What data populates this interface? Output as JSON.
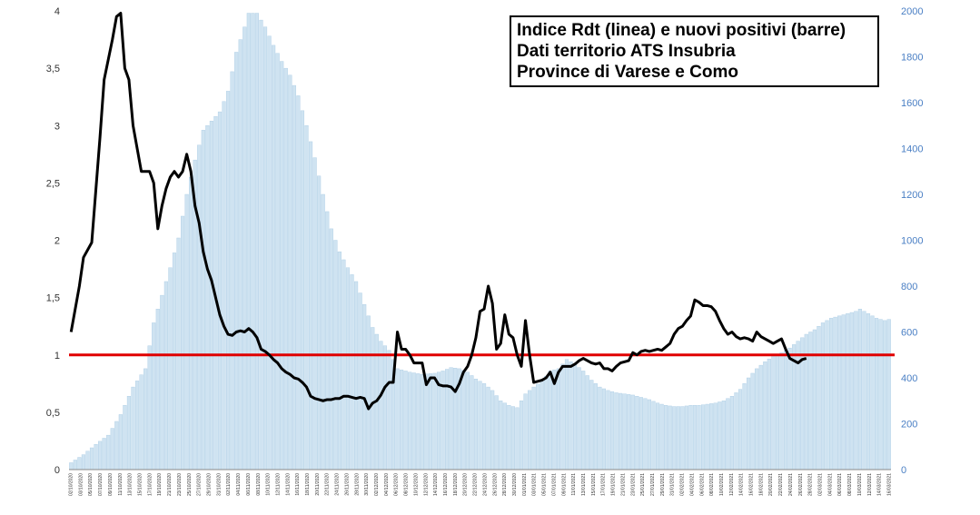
{
  "chart_data": {
    "type": "bar+line",
    "title_lines": [
      "Indice Rdt (linea) e nuovi positivi (barre)",
      "Dati territorio ATS Insubria",
      "Province di Varese e Como"
    ],
    "left_axis": {
      "min": 0,
      "max": 4,
      "ticks": [
        "0",
        "0,5",
        "1",
        "1,5",
        "2",
        "2,5",
        "3",
        "3,5",
        "4"
      ]
    },
    "right_axis": {
      "min": 0,
      "max": 2000,
      "ticks": [
        "0",
        "200",
        "400",
        "600",
        "800",
        "1000",
        "1200",
        "1400",
        "1600",
        "1800",
        "2000"
      ]
    },
    "threshold": {
      "value": 1,
      "color": "#e00000"
    },
    "colors": {
      "bars": "#cfe3f1",
      "bar_edge": "#a9cbe4",
      "line": "#000000",
      "right_axis_text": "#4a7fc4"
    },
    "x_ticks": [
      "02/10/2020",
      "03/10/2020",
      "05/10/2020",
      "07/10/2020",
      "09/10/2020",
      "11/10/2020",
      "13/10/2020",
      "15/10/2020",
      "17/10/2020",
      "19/10/2020",
      "21/10/2020",
      "23/10/2020",
      "25/10/2020",
      "27/10/2020",
      "29/10/2020",
      "31/10/2020",
      "02/11/2020",
      "04/11/2020",
      "06/11/2020",
      "08/11/2020",
      "10/11/2020",
      "12/11/2020",
      "14/11/2020",
      "16/11/2020",
      "18/11/2020",
      "20/11/2020",
      "22/11/2020",
      "24/11/2020",
      "26/11/2020",
      "28/11/2020",
      "30/11/2020",
      "02/12/2020",
      "04/12/2020",
      "06/12/2020",
      "08/12/2020",
      "10/12/2020",
      "12/12/2020",
      "14/12/2020",
      "16/12/2020",
      "18/12/2020",
      "20/12/2020",
      "22/12/2020",
      "24/12/2020",
      "26/12/2020",
      "28/12/2020",
      "30/12/2020",
      "01/01/2021",
      "03/01/2021",
      "05/01/2021",
      "07/01/2021",
      "09/01/2021",
      "11/01/2021",
      "13/01/2021",
      "15/01/2021",
      "17/01/2021",
      "19/01/2021",
      "21/01/2021",
      "23/01/2021",
      "25/01/2021",
      "27/01/2021",
      "29/01/2021",
      "31/01/2021",
      "02/02/2021",
      "04/02/2021",
      "06/02/2021",
      "08/02/2021",
      "10/02/2021",
      "12/02/2021",
      "14/02/2021",
      "16/02/2021",
      "18/02/2021",
      "20/02/2021",
      "22/02/2021",
      "24/02/2021",
      "26/02/2021",
      "28/02/2021",
      "02/03/2021",
      "04/03/2021",
      "06/03/2021",
      "08/03/2021",
      "10/03/2021",
      "12/03/2021",
      "14/03/2021",
      "16/03/2021"
    ],
    "bar_series": {
      "name": "nuovi positivi",
      "axis": "right",
      "keypoints": [
        [
          0,
          30
        ],
        [
          3,
          65
        ],
        [
          6,
          110
        ],
        [
          9,
          150
        ],
        [
          12,
          240
        ],
        [
          15,
          360
        ],
        [
          18,
          440
        ],
        [
          20,
          640
        ],
        [
          22,
          760
        ],
        [
          24,
          880
        ],
        [
          26,
          1010
        ],
        [
          28,
          1200
        ],
        [
          30,
          1350
        ],
        [
          32,
          1480
        ],
        [
          33,
          1500
        ],
        [
          36,
          1560
        ],
        [
          38,
          1650
        ],
        [
          40,
          1820
        ],
        [
          42,
          1930
        ],
        [
          43,
          1990
        ],
        [
          45,
          1990
        ],
        [
          47,
          1930
        ],
        [
          49,
          1850
        ],
        [
          51,
          1780
        ],
        [
          53,
          1720
        ],
        [
          55,
          1630
        ],
        [
          57,
          1500
        ],
        [
          59,
          1360
        ],
        [
          61,
          1200
        ],
        [
          63,
          1050
        ],
        [
          65,
          950
        ],
        [
          67,
          880
        ],
        [
          69,
          820
        ],
        [
          71,
          720
        ],
        [
          73,
          620
        ],
        [
          75,
          560
        ],
        [
          77,
          520
        ],
        [
          79,
          440
        ],
        [
          82,
          425
        ],
        [
          85,
          415
        ],
        [
          88,
          420
        ],
        [
          90,
          430
        ],
        [
          92,
          445
        ],
        [
          94,
          440
        ],
        [
          96,
          425
        ],
        [
          98,
          395
        ],
        [
          100,
          375
        ],
        [
          102,
          345
        ],
        [
          104,
          300
        ],
        [
          106,
          280
        ],
        [
          108,
          270
        ],
        [
          110,
          330
        ],
        [
          112,
          360
        ],
        [
          114,
          385
        ],
        [
          116,
          430
        ],
        [
          118,
          440
        ],
        [
          120,
          480
        ],
        [
          122,
          460
        ],
        [
          124,
          430
        ],
        [
          126,
          390
        ],
        [
          128,
          360
        ],
        [
          130,
          345
        ],
        [
          132,
          335
        ],
        [
          134,
          330
        ],
        [
          136,
          325
        ],
        [
          138,
          315
        ],
        [
          140,
          305
        ],
        [
          142,
          290
        ],
        [
          144,
          280
        ],
        [
          146,
          275
        ],
        [
          148,
          275
        ],
        [
          150,
          280
        ],
        [
          152,
          280
        ],
        [
          154,
          285
        ],
        [
          156,
          290
        ],
        [
          158,
          300
        ],
        [
          160,
          320
        ],
        [
          162,
          350
        ],
        [
          164,
          400
        ],
        [
          166,
          440
        ],
        [
          168,
          470
        ],
        [
          170,
          495
        ],
        [
          172,
          510
        ],
        [
          174,
          530
        ],
        [
          176,
          560
        ],
        [
          178,
          590
        ],
        [
          180,
          610
        ],
        [
          182,
          640
        ],
        [
          184,
          660
        ],
        [
          186,
          670
        ],
        [
          188,
          680
        ],
        [
          190,
          690
        ],
        [
          191,
          700
        ],
        [
          193,
          680
        ],
        [
          195,
          660
        ],
        [
          197,
          650
        ],
        [
          198,
          655
        ]
      ]
    },
    "line_series": {
      "name": "Indice Rdt",
      "axis": "left",
      "keypoints": [
        [
          0,
          1.2
        ],
        [
          2,
          1.6
        ],
        [
          3,
          1.85
        ],
        [
          5,
          1.98
        ],
        [
          7,
          2.9
        ],
        [
          8,
          3.4
        ],
        [
          10,
          3.75
        ],
        [
          11,
          3.95
        ],
        [
          12,
          3.98
        ],
        [
          13,
          3.5
        ],
        [
          14,
          3.4
        ],
        [
          15,
          3.0
        ],
        [
          17,
          2.6
        ],
        [
          19,
          2.6
        ],
        [
          20,
          2.5
        ],
        [
          21,
          2.1
        ],
        [
          22,
          2.3
        ],
        [
          23,
          2.45
        ],
        [
          24,
          2.55
        ],
        [
          25,
          2.6
        ],
        [
          26,
          2.55
        ],
        [
          27,
          2.6
        ],
        [
          28,
          2.75
        ],
        [
          29,
          2.6
        ],
        [
          30,
          2.3
        ],
        [
          31,
          2.15
        ],
        [
          32,
          1.9
        ],
        [
          33,
          1.75
        ],
        [
          34,
          1.65
        ],
        [
          35,
          1.5
        ],
        [
          36,
          1.35
        ],
        [
          37,
          1.25
        ],
        [
          38,
          1.18
        ],
        [
          39,
          1.17
        ],
        [
          40,
          1.2
        ],
        [
          41,
          1.21
        ],
        [
          42,
          1.2
        ],
        [
          43,
          1.23
        ],
        [
          44,
          1.2
        ],
        [
          45,
          1.15
        ],
        [
          46,
          1.05
        ],
        [
          47,
          1.03
        ],
        [
          48,
          1.0
        ],
        [
          49,
          0.96
        ],
        [
          50,
          0.93
        ],
        [
          51,
          0.88
        ],
        [
          52,
          0.85
        ],
        [
          53,
          0.83
        ],
        [
          54,
          0.8
        ],
        [
          55,
          0.79
        ],
        [
          56,
          0.76
        ],
        [
          57,
          0.72
        ],
        [
          58,
          0.64
        ],
        [
          59,
          0.62
        ],
        [
          60,
          0.61
        ],
        [
          61,
          0.6
        ],
        [
          62,
          0.61
        ],
        [
          63,
          0.61
        ],
        [
          64,
          0.62
        ],
        [
          65,
          0.62
        ],
        [
          66,
          0.64
        ],
        [
          67,
          0.64
        ],
        [
          68,
          0.63
        ],
        [
          69,
          0.62
        ],
        [
          70,
          0.63
        ],
        [
          71,
          0.62
        ],
        [
          72,
          0.53
        ],
        [
          73,
          0.58
        ],
        [
          74,
          0.6
        ],
        [
          75,
          0.65
        ],
        [
          76,
          0.72
        ],
        [
          77,
          0.76
        ],
        [
          78,
          0.76
        ],
        [
          79,
          1.2
        ],
        [
          80,
          1.05
        ],
        [
          81,
          1.05
        ],
        [
          82,
          1.0
        ],
        [
          83,
          0.93
        ],
        [
          84,
          0.93
        ],
        [
          85,
          0.93
        ],
        [
          86,
          0.74
        ],
        [
          87,
          0.8
        ],
        [
          88,
          0.8
        ],
        [
          89,
          0.74
        ],
        [
          90,
          0.73
        ],
        [
          91,
          0.73
        ],
        [
          92,
          0.72
        ],
        [
          93,
          0.68
        ],
        [
          94,
          0.75
        ],
        [
          95,
          0.85
        ],
        [
          96,
          0.9
        ],
        [
          97,
          1.0
        ],
        [
          98,
          1.15
        ],
        [
          99,
          1.38
        ],
        [
          100,
          1.4
        ],
        [
          101,
          1.6
        ],
        [
          102,
          1.45
        ],
        [
          103,
          1.05
        ],
        [
          104,
          1.1
        ],
        [
          105,
          1.35
        ],
        [
          106,
          1.18
        ],
        [
          107,
          1.15
        ],
        [
          108,
          1.0
        ],
        [
          109,
          0.9
        ],
        [
          110,
          1.3
        ],
        [
          111,
          1.0
        ],
        [
          112,
          0.76
        ],
        [
          113,
          0.77
        ],
        [
          114,
          0.78
        ],
        [
          115,
          0.8
        ],
        [
          116,
          0.85
        ],
        [
          117,
          0.75
        ],
        [
          118,
          0.85
        ],
        [
          119,
          0.9
        ],
        [
          120,
          0.9
        ],
        [
          121,
          0.9
        ],
        [
          122,
          0.92
        ],
        [
          123,
          0.95
        ],
        [
          124,
          0.97
        ],
        [
          125,
          0.95
        ],
        [
          126,
          0.93
        ],
        [
          127,
          0.92
        ],
        [
          128,
          0.93
        ],
        [
          129,
          0.88
        ],
        [
          130,
          0.88
        ],
        [
          131,
          0.86
        ],
        [
          132,
          0.9
        ],
        [
          133,
          0.93
        ],
        [
          134,
          0.94
        ],
        [
          135,
          0.95
        ],
        [
          136,
          1.02
        ],
        [
          137,
          1.0
        ],
        [
          138,
          1.03
        ],
        [
          139,
          1.04
        ],
        [
          140,
          1.03
        ],
        [
          141,
          1.04
        ],
        [
          142,
          1.05
        ],
        [
          143,
          1.04
        ],
        [
          144,
          1.07
        ],
        [
          145,
          1.1
        ],
        [
          146,
          1.18
        ],
        [
          147,
          1.23
        ],
        [
          148,
          1.25
        ],
        [
          149,
          1.3
        ],
        [
          150,
          1.34
        ],
        [
          151,
          1.48
        ],
        [
          152,
          1.46
        ],
        [
          153,
          1.43
        ],
        [
          154,
          1.43
        ],
        [
          155,
          1.42
        ],
        [
          156,
          1.38
        ],
        [
          157,
          1.3
        ],
        [
          158,
          1.23
        ],
        [
          159,
          1.18
        ],
        [
          160,
          1.2
        ],
        [
          161,
          1.16
        ],
        [
          162,
          1.14
        ],
        [
          163,
          1.15
        ],
        [
          164,
          1.14
        ],
        [
          165,
          1.12
        ],
        [
          166,
          1.2
        ],
        [
          167,
          1.16
        ],
        [
          168,
          1.14
        ],
        [
          169,
          1.12
        ],
        [
          170,
          1.1
        ],
        [
          171,
          1.12
        ],
        [
          172,
          1.14
        ],
        [
          173,
          1.05
        ],
        [
          174,
          0.97
        ],
        [
          175,
          0.95
        ],
        [
          176,
          0.93
        ],
        [
          177,
          0.96
        ],
        [
          178,
          0.97
        ]
      ]
    }
  }
}
